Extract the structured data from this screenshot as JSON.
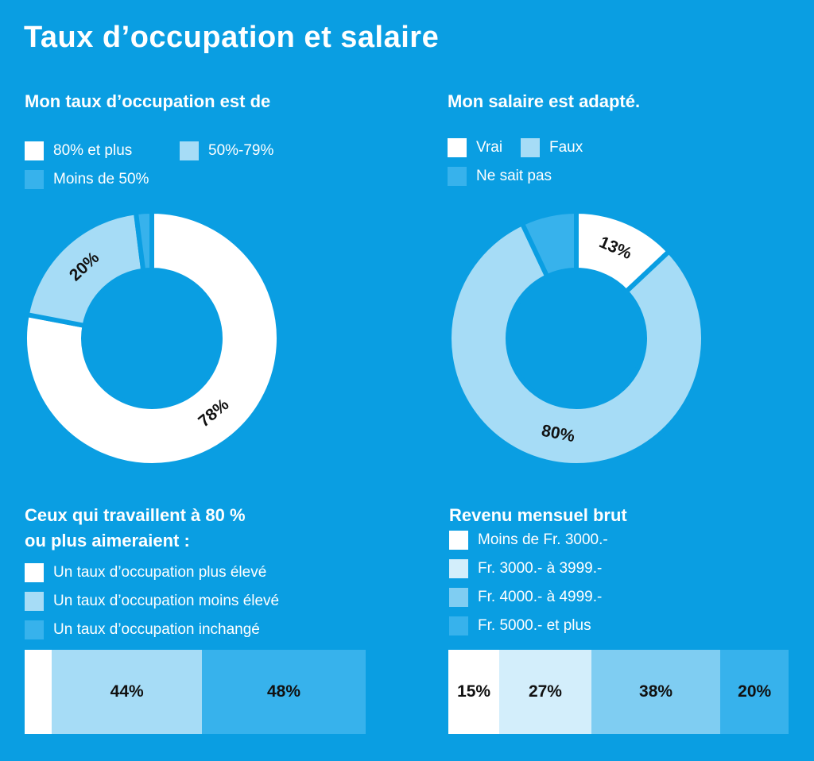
{
  "title": "Taux d’occupation et salaire",
  "colors": {
    "background": "#0a9ee2",
    "white": "#ffffff",
    "light": "#a6dcf6",
    "mid": "#37b2ec",
    "pale": "#d3eefb",
    "softer": "#7fcdf2"
  },
  "chart_data": [
    {
      "type": "pie",
      "title": "Mon taux d’occupation est de",
      "categories": [
        "80% et plus",
        "50%-79%",
        "Moins de 50%"
      ],
      "values": [
        78,
        20,
        2
      ],
      "labels": [
        "78%",
        "20%",
        ""
      ],
      "colors": [
        "#ffffff",
        "#a6dcf6",
        "#37b2ec"
      ]
    },
    {
      "type": "pie",
      "title": "Mon salaire est adapté.",
      "categories": [
        "Vrai",
        "Faux",
        "Ne sait pas"
      ],
      "values": [
        13,
        80,
        7
      ],
      "labels": [
        "13%",
        "80%",
        ""
      ],
      "colors": [
        "#ffffff",
        "#a6dcf6",
        "#37b2ec"
      ]
    },
    {
      "type": "bar",
      "title": "Ceux qui travaillent à 80 % ou plus aimeraient :",
      "title_lines": [
        "Ceux qui travaillent à 80 %",
        "ou plus aimeraient :"
      ],
      "categories": [
        "Un taux d’occupation plus élevé",
        "Un taux d’occupation moins élevé",
        "Un taux d’occupation inchangé"
      ],
      "values": [
        8,
        44,
        48
      ],
      "labels": [
        "",
        "44%",
        "48%"
      ],
      "colors": [
        "#ffffff",
        "#a6dcf6",
        "#37b2ec"
      ]
    },
    {
      "type": "bar",
      "title": "Revenu mensuel brut",
      "categories": [
        "Moins de Fr. 3000.-",
        "Fr. 3000.- à 3999.-",
        "Fr. 4000.- à 4999.-",
        "Fr. 5000.- et plus"
      ],
      "values": [
        15,
        27,
        38,
        20
      ],
      "labels": [
        "15%",
        "27%",
        "38%",
        "20%"
      ],
      "colors": [
        "#ffffff",
        "#d3eefb",
        "#7fcdf2",
        "#37b2ec"
      ]
    }
  ]
}
